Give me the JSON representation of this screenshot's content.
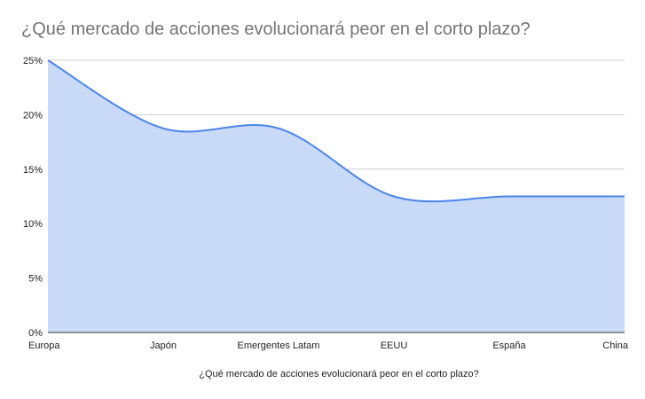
{
  "title": "¿Qué mercado de acciones evolucionará peor en el corto plazo?",
  "colors": {
    "line": "#4a86e8",
    "fill": "#c9daf8",
    "grid": "#cccccc",
    "axis": "#333333",
    "title": "#757575",
    "text": "#222222"
  },
  "chart_data": {
    "type": "area",
    "title": "¿Qué mercado de acciones evolucionará peor en el corto plazo?",
    "xlabel": "¿Qué mercado de acciones evolucionará peor en el corto plazo?",
    "ylabel": "",
    "categories": [
      "Europa",
      "Japón",
      "Emergentes Latam",
      "EEUU",
      "España",
      "China"
    ],
    "values": [
      25,
      18.75,
      18.75,
      12.5,
      12.5,
      12.5
    ],
    "value_unit": "%",
    "ylim": [
      0,
      25
    ],
    "yticks": [
      "0%",
      "5%",
      "10%",
      "15%",
      "20%",
      "25%"
    ],
    "ytick_values": [
      0,
      5,
      10,
      15,
      20,
      25
    ],
    "grid": true,
    "smooth": true,
    "legend": "none"
  }
}
